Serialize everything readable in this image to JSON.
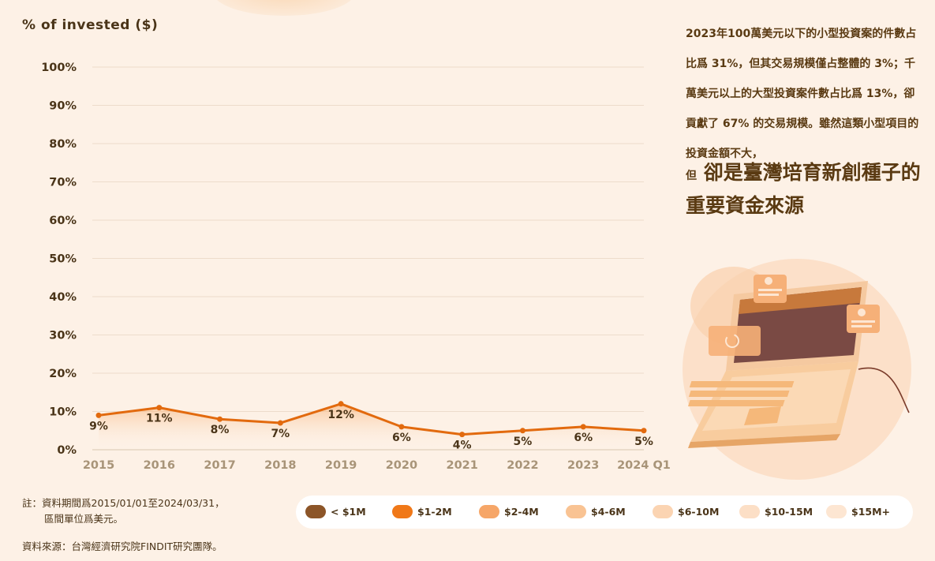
{
  "chart_data": {
    "type": "line",
    "ylabel": "% of invested ($)",
    "categories": [
      "2015",
      "2016",
      "2017",
      "2018",
      "2019",
      "2020",
      "2021",
      "2022",
      "2023",
      "2024 Q1"
    ],
    "values": [
      9,
      11,
      8,
      7,
      12,
      6,
      4,
      5,
      6,
      5
    ],
    "data_labels": [
      "9%",
      "11%",
      "8%",
      "7%",
      "12%",
      "6%",
      "4%",
      "5%",
      "6%",
      "5%"
    ],
    "yticks": [
      "0%",
      "10%",
      "20%",
      "30%",
      "40%",
      "50%",
      "60%",
      "70%",
      "80%",
      "90%",
      "100%"
    ],
    "ylim": [
      0,
      100
    ],
    "grid": true,
    "line_color": "#e26a0e",
    "legend": [
      "< $1M",
      "$1-2M",
      "$2-4M",
      "$4-6M",
      "$6-10M",
      "$10-15M",
      "$15M+"
    ],
    "legend_colors": [
      "#8c5528",
      "#f07818",
      "#f6a668",
      "#f9c393",
      "#fbd4b2",
      "#fcdfc6",
      "#fde6d2"
    ]
  },
  "right_paragraph": "2023年100萬美元以下的小型投資案的件數占比爲 31%，但其交易規模僅占整體的 3%；千萬美元以上的大型投資案件數占比爲 13%，卻貢獻了 67% 的交易規模。雖然這類小型項目的投資金額不大，",
  "highlight_prefix": "但",
  "highlight_text": "卻是臺灣培育新創種子的重要資金來源",
  "note_line1": "註：資料期間爲2015/01/01至2024/03/31，",
  "note_line2": "區間單位爲美元。",
  "source": "資料來源：台灣經濟研究院FINDIT研究團隊。"
}
